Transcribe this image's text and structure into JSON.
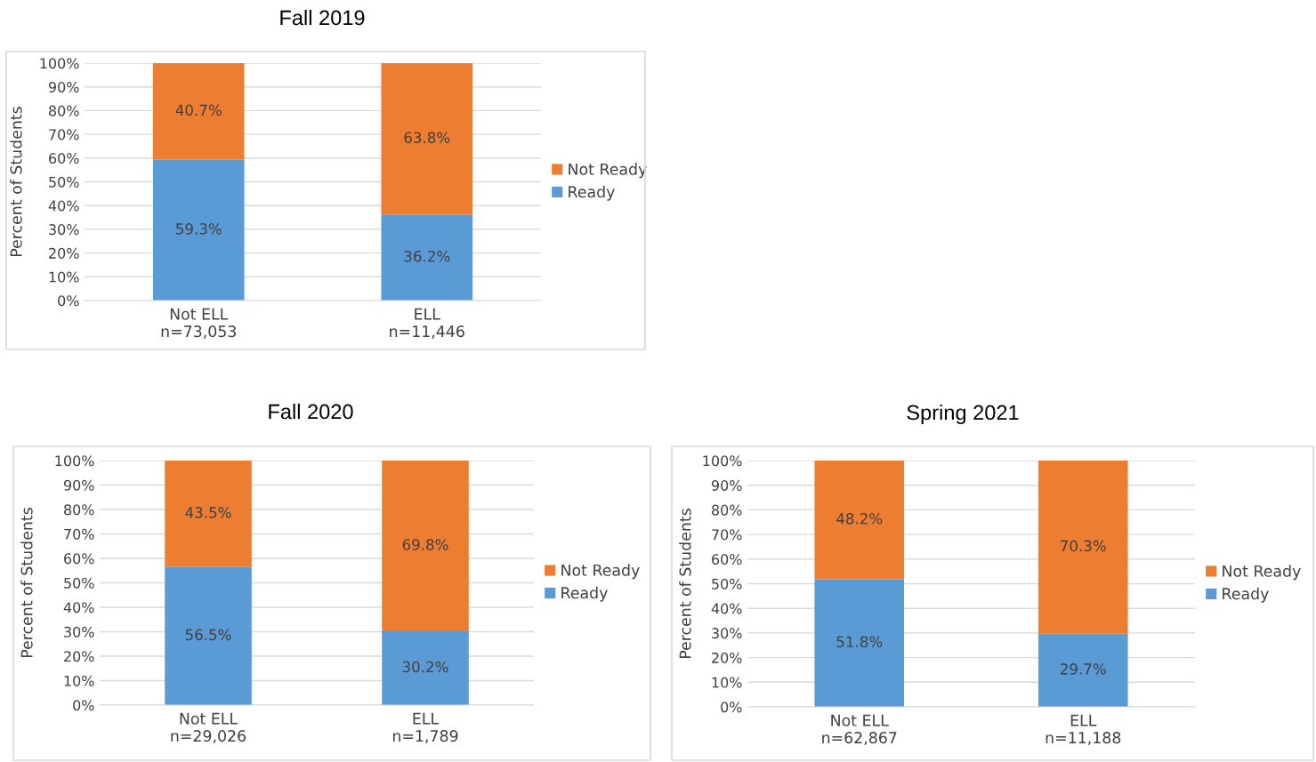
{
  "chart_data": [
    {
      "type": "bar",
      "title": "Fall 2019",
      "ylabel": "Percent of Students",
      "stacked": true,
      "categories": [
        "Not ELL\nn=73,053",
        "ELL\nn=11,446"
      ],
      "series": [
        {
          "name": "Ready",
          "color": "#5b9bd5",
          "values": [
            59.3,
            36.2
          ],
          "value_labels": [
            "59.3%",
            "36.2%"
          ]
        },
        {
          "name": "Not Ready",
          "color": "#ed7d31",
          "values": [
            40.7,
            63.8
          ],
          "value_labels": [
            "40.7%",
            "63.8%"
          ]
        }
      ],
      "ylim": [
        0,
        100
      ],
      "yticks": [
        {
          "value": 0,
          "label": "0%"
        },
        {
          "value": 10,
          "label": "10%"
        },
        {
          "value": 20,
          "label": "20%"
        },
        {
          "value": 30,
          "label": "30%"
        },
        {
          "value": 40,
          "label": "40%"
        },
        {
          "value": 50,
          "label": "50%"
        },
        {
          "value": 60,
          "label": "60%"
        },
        {
          "value": 70,
          "label": "70%"
        },
        {
          "value": 80,
          "label": "80%"
        },
        {
          "value": 90,
          "label": "90%"
        },
        {
          "value": 100,
          "label": "100%"
        }
      ],
      "grid": "y",
      "legend": "right"
    },
    {
      "type": "bar",
      "title": "Fall 2020",
      "ylabel": "Percent of Students",
      "stacked": true,
      "categories": [
        "Not ELL\nn=29,026",
        "ELL\nn=1,789"
      ],
      "series": [
        {
          "name": "Ready",
          "color": "#5b9bd5",
          "values": [
            56.5,
            30.2
          ],
          "value_labels": [
            "56.5%",
            "30.2%"
          ]
        },
        {
          "name": "Not Ready",
          "color": "#ed7d31",
          "values": [
            43.5,
            69.8
          ],
          "value_labels": [
            "43.5%",
            "69.8%"
          ]
        }
      ],
      "ylim": [
        0,
        100
      ],
      "yticks": [
        {
          "value": 0,
          "label": "0%"
        },
        {
          "value": 10,
          "label": "10%"
        },
        {
          "value": 20,
          "label": "20%"
        },
        {
          "value": 30,
          "label": "30%"
        },
        {
          "value": 40,
          "label": "40%"
        },
        {
          "value": 50,
          "label": "50%"
        },
        {
          "value": 60,
          "label": "60%"
        },
        {
          "value": 70,
          "label": "70%"
        },
        {
          "value": 80,
          "label": "80%"
        },
        {
          "value": 90,
          "label": "90%"
        },
        {
          "value": 100,
          "label": "100%"
        }
      ],
      "grid": "y",
      "legend": "right"
    },
    {
      "type": "bar",
      "title": "Spring 2021",
      "ylabel": "Percent of Students",
      "stacked": true,
      "categories": [
        "Not ELL\nn=62,867",
        "ELL\nn=11,188"
      ],
      "series": [
        {
          "name": "Ready",
          "color": "#5b9bd5",
          "values": [
            51.8,
            29.7
          ],
          "value_labels": [
            "51.8%",
            "29.7%"
          ]
        },
        {
          "name": "Not Ready",
          "color": "#ed7d31",
          "values": [
            48.2,
            70.3
          ],
          "value_labels": [
            "48.2%",
            "70.3%"
          ]
        }
      ],
      "ylim": [
        0,
        100
      ],
      "yticks": [
        {
          "value": 0,
          "label": "0%"
        },
        {
          "value": 10,
          "label": "10%"
        },
        {
          "value": 20,
          "label": "20%"
        },
        {
          "value": 30,
          "label": "30%"
        },
        {
          "value": 40,
          "label": "40%"
        },
        {
          "value": 50,
          "label": "50%"
        },
        {
          "value": 60,
          "label": "60%"
        },
        {
          "value": 70,
          "label": "70%"
        },
        {
          "value": 80,
          "label": "80%"
        },
        {
          "value": 90,
          "label": "90%"
        },
        {
          "value": 100,
          "label": "100%"
        }
      ],
      "grid": "y",
      "legend": "right"
    }
  ]
}
